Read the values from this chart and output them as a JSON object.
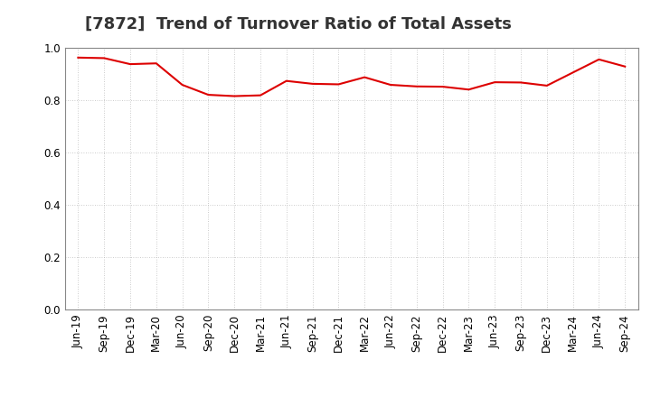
{
  "title": "[7872]  Trend of Turnover Ratio of Total Assets",
  "labels": [
    "Jun-19",
    "Sep-19",
    "Dec-19",
    "Mar-20",
    "Jun-20",
    "Sep-20",
    "Dec-20",
    "Mar-21",
    "Jun-21",
    "Sep-21",
    "Dec-21",
    "Mar-22",
    "Jun-22",
    "Sep-22",
    "Dec-22",
    "Mar-23",
    "Jun-23",
    "Sep-23",
    "Dec-23",
    "Mar-24",
    "Jun-24",
    "Sep-24"
  ],
  "values": [
    0.962,
    0.96,
    0.937,
    0.94,
    0.858,
    0.82,
    0.815,
    0.818,
    0.873,
    0.862,
    0.86,
    0.887,
    0.858,
    0.852,
    0.851,
    0.84,
    0.868,
    0.867,
    0.855,
    0.905,
    0.955,
    0.928
  ],
  "line_color": "#dd0000",
  "line_width": 1.5,
  "ylim": [
    0.0,
    1.0
  ],
  "yticks": [
    0.0,
    0.2,
    0.4,
    0.6,
    0.8,
    1.0
  ],
  "background_color": "#ffffff",
  "grid_color": "#bbbbbb",
  "title_fontsize": 13,
  "tick_fontsize": 8.5
}
